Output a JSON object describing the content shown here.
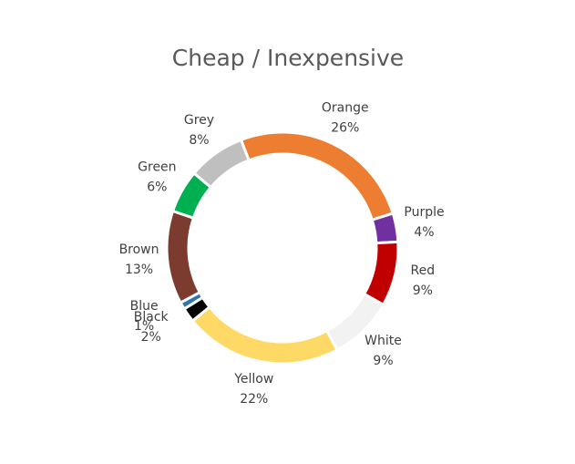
{
  "chart_data": {
    "type": "donut",
    "title": "Cheap / Inexpensive",
    "categories": [
      "Orange",
      "Purple",
      "Red",
      "White",
      "Yellow",
      "Black",
      "Blue",
      "Brown",
      "Green",
      "Grey"
    ],
    "values": [
      26,
      4,
      9,
      9,
      22,
      2,
      1,
      13,
      6,
      8
    ],
    "value_labels": [
      "26%",
      "4%",
      "9%",
      "9%",
      "22%",
      "2%",
      "1%",
      "13%",
      "6%",
      "8%"
    ],
    "colors": [
      "#ED7D31",
      "#7030A0",
      "#C00000",
      "#F2F2F2",
      "#FFD966",
      "#000000",
      "#2E75B6",
      "#7B3B2E",
      "#00B050",
      "#BFBFBF"
    ]
  }
}
